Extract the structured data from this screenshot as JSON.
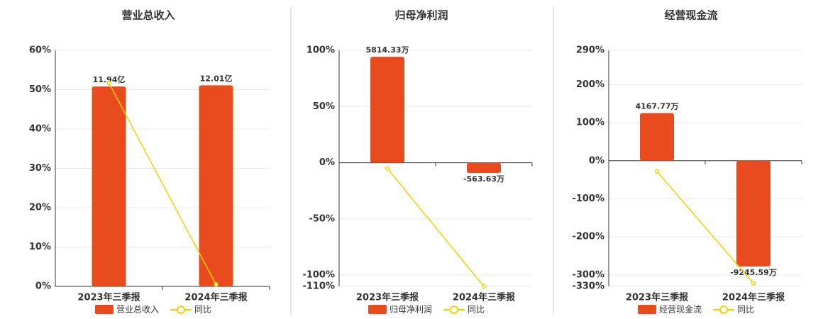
{
  "chart_data": [
    {
      "type": "combo",
      "title": "营业总收入",
      "categories": [
        "2023年三季报",
        "2024年三季报"
      ],
      "ylim": [
        0,
        60
      ],
      "yticks": [
        {
          "value": 0,
          "label": "0%"
        },
        {
          "value": 10,
          "label": "10%"
        },
        {
          "value": 20,
          "label": "20%"
        },
        {
          "value": 30,
          "label": "30%"
        },
        {
          "value": 40,
          "label": "40%"
        },
        {
          "value": 50,
          "label": "50%"
        },
        {
          "value": 60,
          "label": "60%"
        }
      ],
      "y2lim": [
        0,
        14.1
      ],
      "grid": true,
      "series": [
        {
          "name": "营业总收入",
          "type": "bar",
          "axis": "y2",
          "color": "#e84c1e",
          "values": [
            11.94,
            12.01
          ],
          "value_labels": [
            "11.94亿",
            "12.01亿"
          ]
        },
        {
          "name": "同比",
          "type": "line",
          "color": "#f5d000",
          "values": [
            51.7,
            0.5
          ]
        }
      ]
    },
    {
      "type": "combo",
      "title": "归母净利润",
      "categories": [
        "2023年三季报",
        "2024年三季报"
      ],
      "ylim": [
        -110,
        100
      ],
      "yticks": [
        {
          "value": -110,
          "label": "-110%"
        },
        {
          "value": -100,
          "label": "-100%"
        },
        {
          "value": -50,
          "label": "-50%"
        },
        {
          "value": 0,
          "label": "0%"
        },
        {
          "value": 50,
          "label": "50%"
        },
        {
          "value": 100,
          "label": "100%"
        }
      ],
      "y2lim": [
        -6780,
        6170
      ],
      "grid": true,
      "series": [
        {
          "name": "归母净利润",
          "type": "bar",
          "axis": "y2",
          "color": "#e84c1e",
          "values": [
            5814.33,
            -563.63
          ],
          "value_labels": [
            "5814.33万",
            "-563.63万"
          ]
        },
        {
          "name": "同比",
          "type": "line",
          "color": "#f5d000",
          "values": [
            -5,
            -110
          ]
        }
      ]
    },
    {
      "type": "combo",
      "title": "经营现金流",
      "categories": [
        "2023年三季报",
        "2024年三季报"
      ],
      "ylim": [
        -330,
        290
      ],
      "yticks": [
        {
          "value": -330,
          "label": "-330%"
        },
        {
          "value": -300,
          "label": "-300%"
        },
        {
          "value": -200,
          "label": "-200%"
        },
        {
          "value": -100,
          "label": "-100%"
        },
        {
          "value": 0,
          "label": "0%"
        },
        {
          "value": 100,
          "label": "100%"
        },
        {
          "value": 200,
          "label": "200%"
        },
        {
          "value": 290,
          "label": "290%"
        }
      ],
      "y2lim": [
        -10989,
        9657
      ],
      "grid": true,
      "series": [
        {
          "name": "经营现金流",
          "type": "bar",
          "axis": "y2",
          "color": "#e84c1e",
          "values": [
            4167.77,
            -9245.59
          ],
          "value_labels": [
            "4167.77万",
            "-9245.59万"
          ]
        },
        {
          "name": "同比",
          "type": "line",
          "color": "#f5d000",
          "values": [
            -28,
            -322
          ]
        }
      ]
    }
  ]
}
